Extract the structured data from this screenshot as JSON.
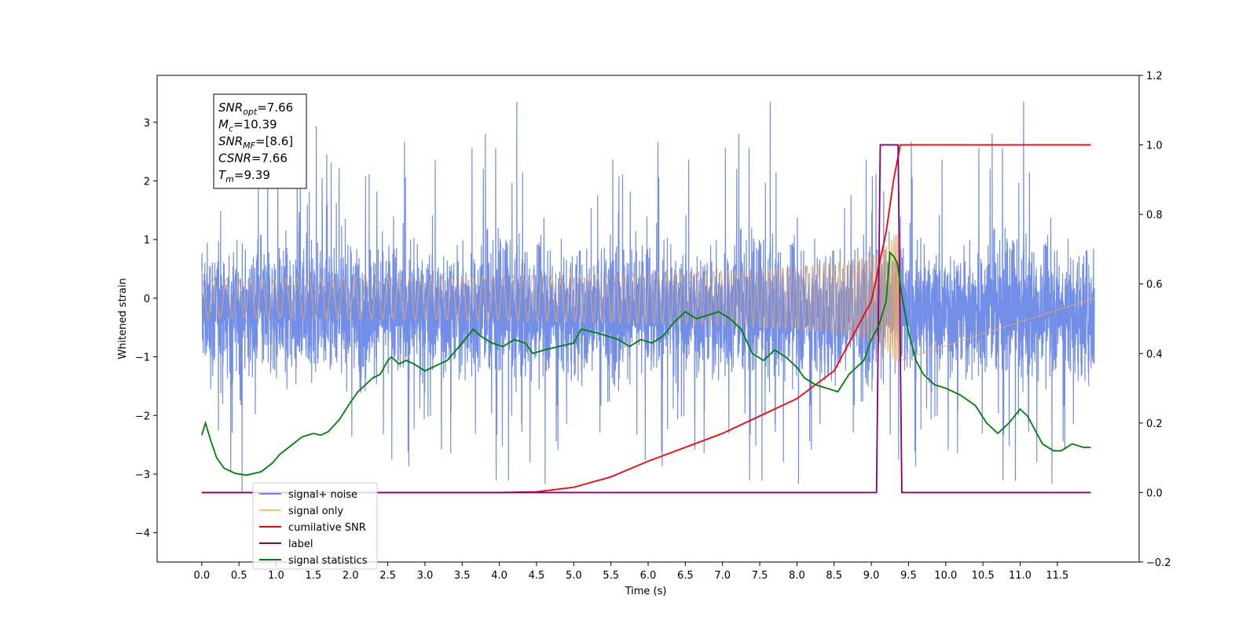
{
  "chart_data": {
    "type": "line",
    "xlabel": "Time (s)",
    "ylabel": "Whitened strain",
    "xlim": [
      -0.6,
      12.6
    ],
    "ylim": [
      -4.5,
      3.8
    ],
    "y2lim": [
      -0.2,
      1.2
    ],
    "xticks": [
      0.0,
      0.5,
      1.0,
      1.5,
      2.0,
      2.5,
      3.0,
      3.5,
      4.0,
      4.5,
      5.0,
      5.5,
      6.0,
      6.5,
      7.0,
      7.5,
      8.0,
      8.5,
      9.0,
      9.5,
      10.0,
      10.5,
      11.0,
      11.5
    ],
    "yticks": [
      -4,
      -3,
      -2,
      -1,
      0,
      1,
      2,
      3
    ],
    "y2ticks": [
      -0.2,
      0.0,
      0.2,
      0.4,
      0.6,
      0.8,
      1.0,
      1.2
    ],
    "grid": false,
    "legend_position": "lower-left",
    "colors": {
      "signal_noise": "#6b88e6",
      "signal_only": "#e8a860",
      "cumulative_snr": "#ff0000",
      "label": "#800080",
      "signal_statistics": "#008000"
    },
    "annotation": {
      "lines": [
        {
          "base": "SNR",
          "sub": "opt",
          "value": "=7.66"
        },
        {
          "base": "M",
          "sub": "c",
          "value": "=10.39"
        },
        {
          "base": "SNR",
          "sub": "MF",
          "value": "=[8.6]"
        },
        {
          "base": "CSNR",
          "sub": "",
          "value": "=7.66"
        },
        {
          "base": "T",
          "sub": "m",
          "value": "=9.39"
        }
      ]
    },
    "legend": [
      {
        "label": "signal+ noise",
        "color": "#6b88e6"
      },
      {
        "label": "signal only",
        "color": "#ffbf6b"
      },
      {
        "label": "cumilative SNR",
        "color": "#ff0000"
      },
      {
        "label": "label",
        "color": "#800080"
      },
      {
        "label": "signal statistics",
        "color": "#008000"
      }
    ],
    "noise": {
      "x_start": 0.0,
      "x_end": 12.0,
      "band_low": -1.4,
      "band_high": 1.0,
      "max": 3.35,
      "min": -4.1
    },
    "signal_chirp": {
      "x_start": 0.0,
      "x_end": 9.39,
      "peak_amplitude": 1.1
    },
    "label_series": {
      "x": [
        0.0,
        9.07,
        9.12,
        9.36,
        9.41,
        11.95
      ],
      "y2": [
        0.0,
        0.0,
        1.0,
        1.0,
        0.0,
        0.0
      ]
    },
    "cumulative_snr": {
      "x": [
        0.0,
        4.0,
        4.5,
        5.0,
        5.5,
        6.0,
        6.5,
        7.0,
        7.5,
        8.0,
        8.5,
        9.0,
        9.2,
        9.3,
        9.39,
        11.95
      ],
      "y2": [
        0.0,
        0.0,
        0.002,
        0.015,
        0.045,
        0.09,
        0.13,
        0.17,
        0.22,
        0.27,
        0.35,
        0.55,
        0.75,
        0.9,
        1.0,
        1.0
      ]
    },
    "signal_statistics": {
      "x": [
        0.0,
        0.05,
        0.12,
        0.2,
        0.3,
        0.45,
        0.6,
        0.8,
        0.95,
        1.05,
        1.2,
        1.35,
        1.5,
        1.6,
        1.7,
        1.85,
        2.0,
        2.1,
        2.2,
        2.3,
        2.4,
        2.5,
        2.55,
        2.65,
        2.75,
        2.85,
        3.0,
        3.1,
        3.2,
        3.3,
        3.5,
        3.65,
        3.75,
        3.9,
        4.05,
        4.2,
        4.35,
        4.45,
        4.6,
        4.8,
        5.0,
        5.1,
        5.3,
        5.45,
        5.6,
        5.75,
        5.9,
        6.05,
        6.2,
        6.35,
        6.5,
        6.65,
        6.8,
        6.95,
        7.1,
        7.25,
        7.4,
        7.55,
        7.7,
        7.85,
        8.0,
        8.1,
        8.25,
        8.4,
        8.55,
        8.7,
        8.9,
        9.0,
        9.1,
        9.2,
        9.25,
        9.3,
        9.35,
        9.4,
        9.5,
        9.6,
        9.7,
        9.85,
        10.0,
        10.2,
        10.4,
        10.55,
        10.7,
        10.85,
        11.0,
        11.1,
        11.2,
        11.3,
        11.45,
        11.55,
        11.7,
        11.85,
        11.95
      ],
      "y2": [
        0.165,
        0.2,
        0.15,
        0.1,
        0.07,
        0.055,
        0.05,
        0.06,
        0.085,
        0.11,
        0.135,
        0.16,
        0.17,
        0.165,
        0.175,
        0.21,
        0.26,
        0.29,
        0.31,
        0.33,
        0.34,
        0.38,
        0.39,
        0.37,
        0.38,
        0.37,
        0.35,
        0.36,
        0.37,
        0.38,
        0.43,
        0.47,
        0.45,
        0.43,
        0.42,
        0.44,
        0.43,
        0.4,
        0.41,
        0.42,
        0.43,
        0.47,
        0.46,
        0.45,
        0.44,
        0.42,
        0.44,
        0.43,
        0.45,
        0.49,
        0.52,
        0.5,
        0.51,
        0.52,
        0.5,
        0.47,
        0.4,
        0.38,
        0.41,
        0.39,
        0.36,
        0.33,
        0.31,
        0.3,
        0.29,
        0.34,
        0.38,
        0.44,
        0.48,
        0.55,
        0.69,
        0.68,
        0.66,
        0.58,
        0.46,
        0.38,
        0.34,
        0.31,
        0.3,
        0.28,
        0.25,
        0.2,
        0.17,
        0.2,
        0.24,
        0.22,
        0.18,
        0.14,
        0.12,
        0.12,
        0.14,
        0.13,
        0.13
      ]
    }
  }
}
